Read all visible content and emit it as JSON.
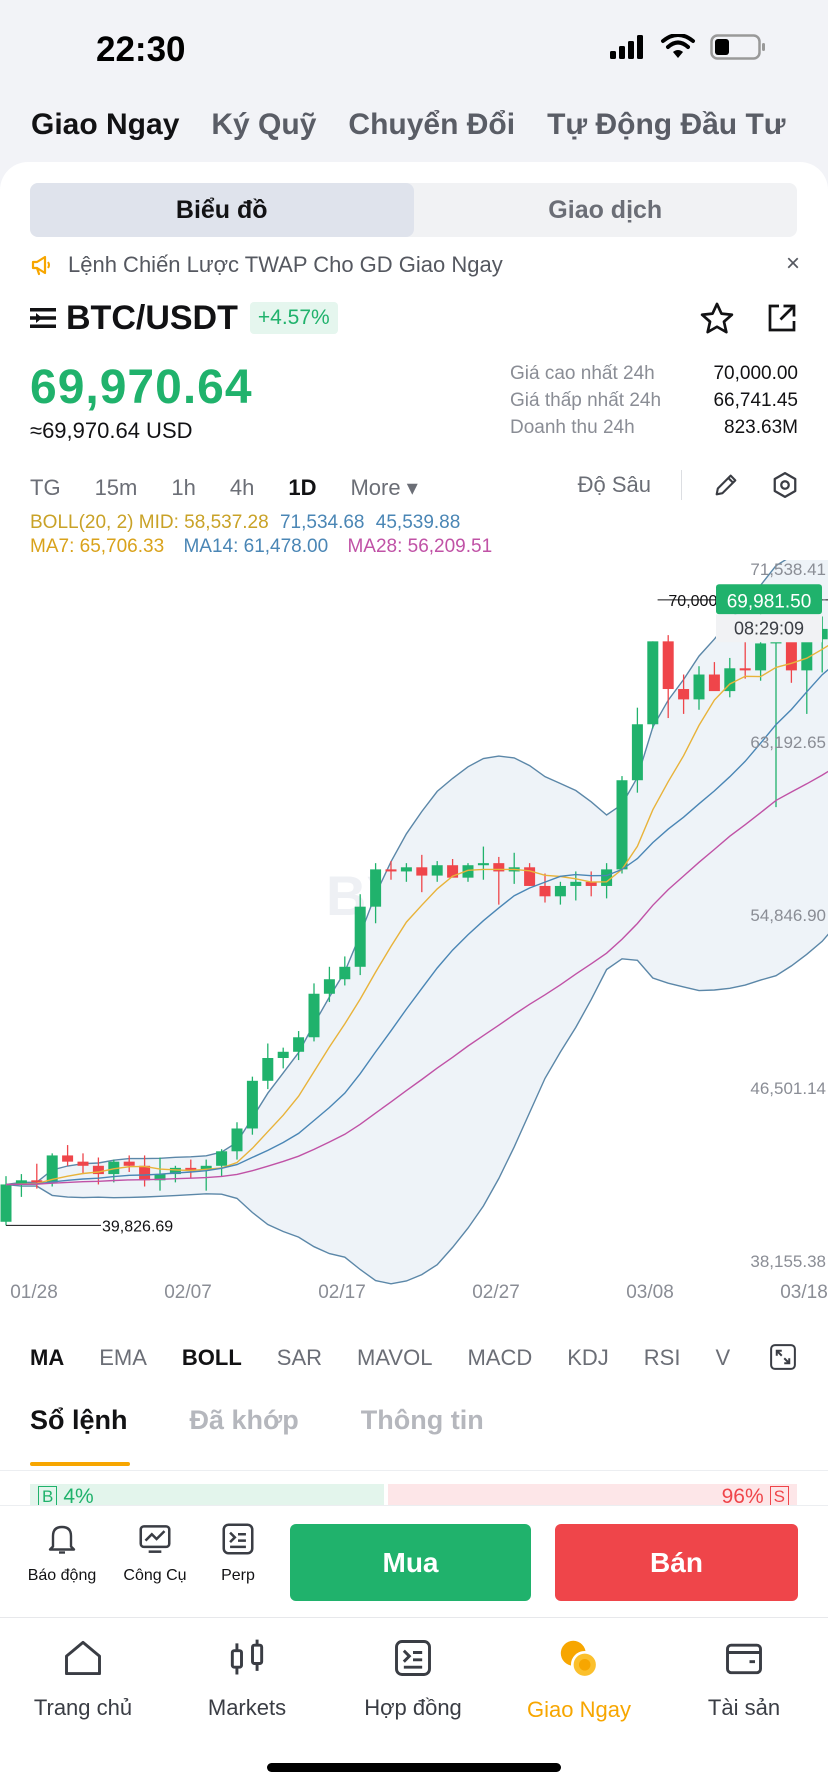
{
  "status_bar": {
    "time": "22:30"
  },
  "mode_tabs": [
    {
      "label": "Giao Ngay",
      "active": true
    },
    {
      "label": "Ký Quỹ",
      "active": false
    },
    {
      "label": "Chuyển Đổi",
      "active": false
    },
    {
      "label": "Tự Động Đầu Tư",
      "active": false
    }
  ],
  "view_toggle": {
    "chart": "Biểu đồ",
    "trade": "Giao dịch"
  },
  "notice": {
    "text": "Lệnh Chiến Lược TWAP Cho GD Giao Ngay",
    "close": "×"
  },
  "pair": {
    "symbol": "BTC/USDT",
    "change": "+4.57%"
  },
  "price": {
    "last": "69,970.64",
    "usd": "≈69,970.64 USD"
  },
  "stats": [
    {
      "label": "Giá cao nhất 24h",
      "value": "70,000.00"
    },
    {
      "label": "Giá thấp nhất 24h",
      "value": "66,741.45"
    },
    {
      "label": "Doanh thu 24h",
      "value": "823.63M"
    }
  ],
  "timeframes": {
    "tg": "TG",
    "m15": "15m",
    "h1": "1h",
    "h4": "4h",
    "d1": "1D",
    "more": "More ▾",
    "depth": "Độ Sâu"
  },
  "indicators": {
    "boll": {
      "label": "BOLL(20, 2) MID: 58,537.28",
      "upper": "71,534.68",
      "lower": "45,539.88"
    },
    "ma7": "MA7: 65,706.33",
    "ma14": "MA14: 61,478.00",
    "ma28": "MA28: 56,209.51"
  },
  "colors": {
    "up": "#20b26c",
    "down": "#ef454a",
    "accent": "#f7a600",
    "boll": "#5b87a8",
    "ma7": "#e8b33a",
    "ma14": "#4a86b5",
    "ma28": "#c052a6"
  },
  "chart_data": {
    "type": "candlestick",
    "watermark": "BYBIT",
    "y_ticks": [
      "71,538.41",
      "63,192.65",
      "54,846.90",
      "46,501.14",
      "38,155.38"
    ],
    "x_ticks": [
      "01/28",
      "02/07",
      "02/17",
      "02/27",
      "03/08",
      "03/18"
    ],
    "ylim": [
      38155.38,
      71538.41
    ],
    "current_price": {
      "value": "69,981.50",
      "countdown": "08:29:09"
    },
    "high_marker": "70,000.00",
    "low_marker": "39,826.69",
    "candles": [
      [
        40000,
        42200,
        39826.69,
        41800
      ],
      [
        41800,
        42300,
        41200,
        42000
      ],
      [
        42000,
        42800,
        41600,
        41900
      ],
      [
        41900,
        43300,
        41700,
        43200
      ],
      [
        43200,
        43700,
        42700,
        42900
      ],
      [
        42900,
        43300,
        42300,
        42700
      ],
      [
        42700,
        43100,
        41800,
        42300
      ],
      [
        42300,
        43000,
        41900,
        42900
      ],
      [
        42900,
        43200,
        42400,
        42700
      ],
      [
        42700,
        43200,
        41700,
        42000
      ],
      [
        42000,
        43100,
        41500,
        42300
      ],
      [
        42300,
        42700,
        41900,
        42600
      ],
      [
        42600,
        43000,
        42100,
        42500
      ],
      [
        42500,
        43000,
        41500,
        42700
      ],
      [
        42700,
        43500,
        42200,
        43400
      ],
      [
        43400,
        44800,
        43000,
        44500
      ],
      [
        44500,
        47000,
        44200,
        46800
      ],
      [
        46800,
        48600,
        46400,
        47900
      ],
      [
        47900,
        48400,
        47400,
        48200
      ],
      [
        48200,
        49200,
        47800,
        48900
      ],
      [
        48900,
        51500,
        48700,
        51000
      ],
      [
        51000,
        52300,
        50600,
        51700
      ],
      [
        51700,
        52800,
        51400,
        52300
      ],
      [
        52300,
        55800,
        51900,
        55200
      ],
      [
        55200,
        57300,
        54400,
        57000
      ],
      [
        57000,
        57400,
        56500,
        56900
      ],
      [
        56900,
        57300,
        56400,
        57100
      ],
      [
        57100,
        57700,
        55900,
        56700
      ],
      [
        56700,
        57400,
        56400,
        57200
      ],
      [
        57200,
        57500,
        56700,
        56600
      ],
      [
        56600,
        57300,
        56400,
        57200
      ],
      [
        57200,
        58100,
        56500,
        57300
      ],
      [
        57300,
        57600,
        55300,
        56900
      ],
      [
        56900,
        57800,
        56300,
        57100
      ],
      [
        57100,
        57300,
        56200,
        56200
      ],
      [
        56200,
        56800,
        55400,
        55700
      ],
      [
        55700,
        56400,
        55300,
        56200
      ],
      [
        56200,
        56900,
        55500,
        56400
      ],
      [
        56400,
        56900,
        55700,
        56200
      ],
      [
        56200,
        57300,
        55600,
        57000
      ],
      [
        57000,
        61500,
        56800,
        61300
      ],
      [
        61300,
        64800,
        60700,
        64000
      ],
      [
        64000,
        68000,
        63800,
        68000
      ],
      [
        68000,
        68300,
        64300,
        65700
      ],
      [
        65700,
        66400,
        64500,
        65200
      ],
      [
        65200,
        66800,
        64700,
        66400
      ],
      [
        66400,
        67000,
        65700,
        65600
      ],
      [
        65600,
        67200,
        65300,
        66700
      ],
      [
        66700,
        69200,
        66200,
        66600
      ],
      [
        66600,
        69500,
        66100,
        67900
      ],
      [
        67900,
        69000,
        60000,
        68800
      ],
      [
        68800,
        69200,
        66000,
        66600
      ],
      [
        66600,
        68400,
        64500,
        68100
      ],
      [
        68100,
        69200,
        66500,
        68600
      ],
      [
        68600,
        70000,
        68100,
        69981.5
      ]
    ]
  },
  "indicator_tabs": [
    "MA",
    "EMA",
    "BOLL",
    "SAR",
    "MAVOL",
    "MACD",
    "KDJ",
    "RSI",
    "V"
  ],
  "orderbook_tabs": [
    "Sổ lệnh",
    "Đã khớp",
    "Thông tin"
  ],
  "ratio": {
    "buy_badge": "B",
    "buy_pct": "4%",
    "sell_pct": "96%",
    "sell_badge": "S"
  },
  "actions": {
    "alert": "Báo động",
    "tools": "Công Cụ",
    "perp": "Perp",
    "buy": "Mua",
    "sell": "Bán"
  },
  "bottom_nav": [
    {
      "label": "Trang chủ",
      "icon": "home-icon",
      "active": false
    },
    {
      "label": "Markets",
      "icon": "candlestick-icon",
      "active": false
    },
    {
      "label": "Hợp đồng",
      "icon": "contract-icon",
      "active": false
    },
    {
      "label": "Giao Ngay",
      "icon": "spot-coins-icon",
      "active": true
    },
    {
      "label": "Tài sản",
      "icon": "wallet-icon",
      "active": false
    }
  ]
}
